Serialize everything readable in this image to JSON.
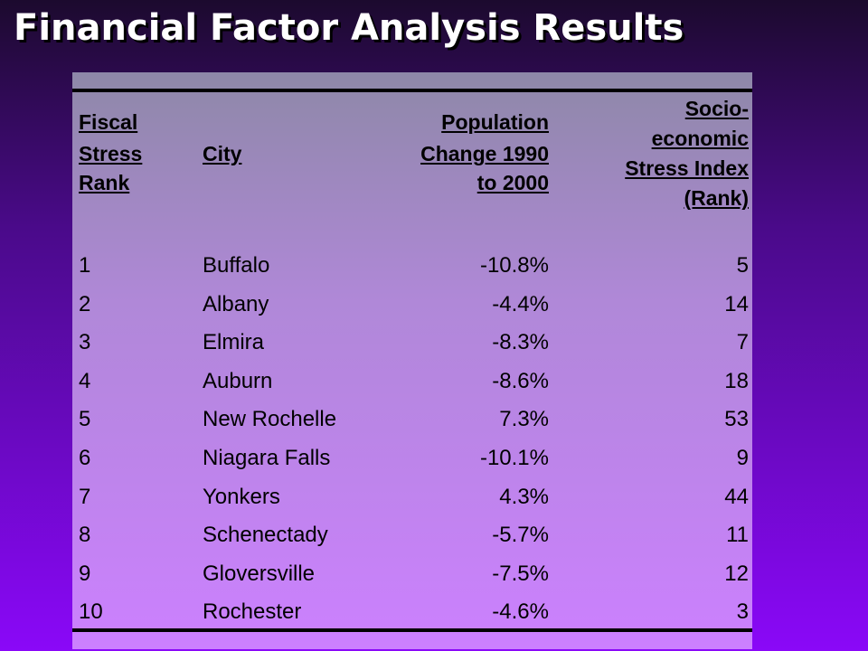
{
  "title": "Financial Factor Analysis Results",
  "table": {
    "header": [
      [
        "Fiscal",
        "Stress",
        "Rank"
      ],
      [
        "City"
      ],
      [
        "Population",
        "Change 1990",
        "to 2000"
      ],
      [
        "Socio-",
        "economic",
        "Stress Index",
        "(Rank)"
      ]
    ],
    "rows": [
      [
        "1",
        "Buffalo",
        "-10.8%",
        "5"
      ],
      [
        "2",
        "Albany",
        "-4.4%",
        "14"
      ],
      [
        "3",
        "Elmira",
        "-8.3%",
        "7"
      ],
      [
        "4",
        "Auburn",
        "-8.6%",
        "18"
      ],
      [
        "5",
        "New Rochelle",
        "7.3%",
        "53"
      ],
      [
        "6",
        "Niagara Falls",
        "-10.1%",
        "9"
      ],
      [
        "7",
        "Yonkers",
        "4.3%",
        "44"
      ],
      [
        "8",
        "Schenectady",
        "-5.7%",
        "11"
      ],
      [
        "9",
        "Gloversville",
        "-7.5%",
        "12"
      ],
      [
        "10",
        "Rochester",
        "-4.6%",
        "3"
      ]
    ]
  }
}
